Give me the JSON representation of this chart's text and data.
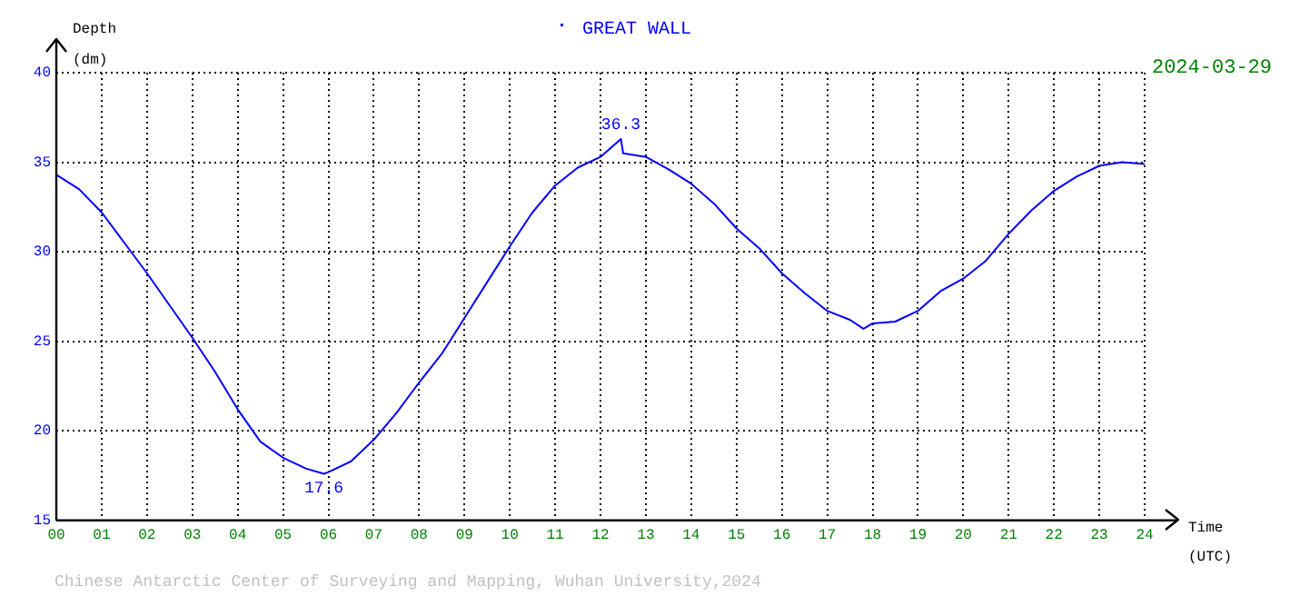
{
  "chart_data": {
    "type": "line",
    "title": "GREAT WALL",
    "xlabel": "Time (UTC)",
    "ylabel": "Depth (dm)",
    "annotations": [
      "2024-03-29",
      {
        "text": "36.3",
        "x": 12.45,
        "y": 36.3
      },
      {
        "text": "17.6",
        "x": 5.9,
        "y": 17.6
      },
      "Chinese Antarctic Center of Surveying and Mapping, Wuhan University,2024"
    ],
    "x": [
      0,
      0.5,
      1,
      1.5,
      2,
      2.5,
      3,
      3.5,
      4,
      4.5,
      5,
      5.5,
      5.9,
      6,
      6.5,
      7,
      7.5,
      8,
      8.5,
      9,
      9.5,
      10,
      10.5,
      11,
      11.5,
      12,
      12.45,
      12.5,
      13,
      13.5,
      14,
      14.5,
      15,
      15.5,
      16,
      16.5,
      17,
      17.5,
      17.8,
      18,
      18.5,
      19,
      19.5,
      20,
      20.5,
      21,
      21.5,
      22,
      22.5,
      23,
      23.5,
      24
    ],
    "series": [
      {
        "color": "#0000ff",
        "values": [
          34.3,
          33.5,
          32.2,
          30.5,
          28.8,
          27.0,
          25.2,
          23.3,
          21.2,
          19.4,
          18.5,
          17.9,
          17.6,
          17.7,
          18.3,
          19.5,
          21.0,
          22.7,
          24.3,
          26.3,
          28.3,
          30.3,
          32.2,
          33.7,
          34.7,
          35.3,
          36.3,
          35.5,
          35.3,
          34.6,
          33.8,
          32.7,
          31.3,
          30.2,
          28.8,
          27.7,
          26.7,
          26.2,
          25.7,
          26.0,
          26.1,
          26.7,
          27.8,
          28.5,
          29.5,
          31.0,
          32.3,
          33.4,
          34.2,
          34.8,
          35.0,
          34.9
        ]
      }
    ],
    "xlim": [
      0,
      24
    ],
    "xticks": [
      {
        "value": 0,
        "label": "00"
      },
      {
        "value": 1,
        "label": "01"
      },
      {
        "value": 2,
        "label": "02"
      },
      {
        "value": 3,
        "label": "03"
      },
      {
        "value": 4,
        "label": "04"
      },
      {
        "value": 5,
        "label": "05"
      },
      {
        "value": 6,
        "label": "06"
      },
      {
        "value": 7,
        "label": "07"
      },
      {
        "value": 8,
        "label": "08"
      },
      {
        "value": 9,
        "label": "09"
      },
      10,
      11,
      12,
      13,
      14,
      15,
      16,
      17,
      18,
      19,
      20,
      21,
      22,
      23,
      24
    ],
    "ylim": [
      15,
      40
    ],
    "yticks": [
      15,
      20,
      25,
      30,
      35,
      40
    ],
    "grid": true,
    "marker": "none",
    "line_style": "solid"
  }
}
